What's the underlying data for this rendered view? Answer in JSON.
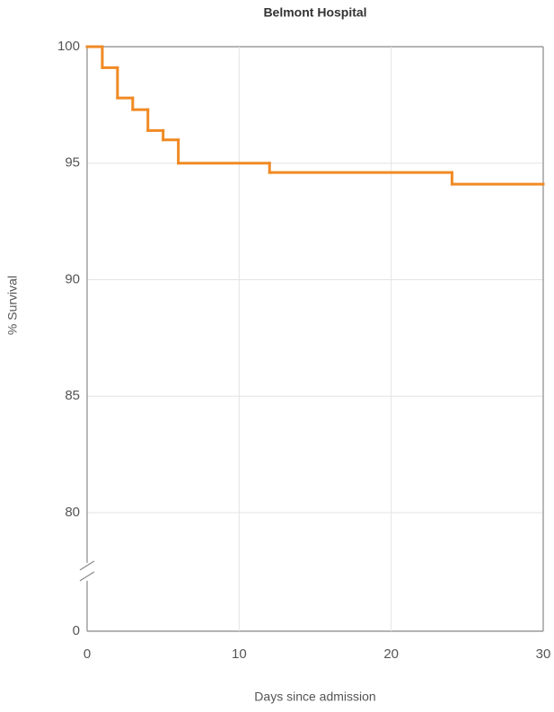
{
  "chart_data": {
    "type": "step",
    "title": "Belmont Hospital",
    "x_label": "Days since admission",
    "y_label": "% Survival",
    "x": [
      0,
      1,
      2,
      3,
      4,
      5,
      6,
      12,
      24
    ],
    "values": [
      100,
      99.1,
      97.8,
      97.3,
      96.4,
      96,
      95,
      94.6,
      94.1
    ],
    "color": "#f08a24",
    "xlim": [
      0,
      30
    ],
    "xticks": [
      0,
      10,
      20,
      30
    ],
    "ylim": [
      0,
      100
    ],
    "yticks": [
      0,
      80,
      85,
      90,
      95,
      100
    ],
    "y_break": [
      0,
      78
    ],
    "grid": true
  }
}
